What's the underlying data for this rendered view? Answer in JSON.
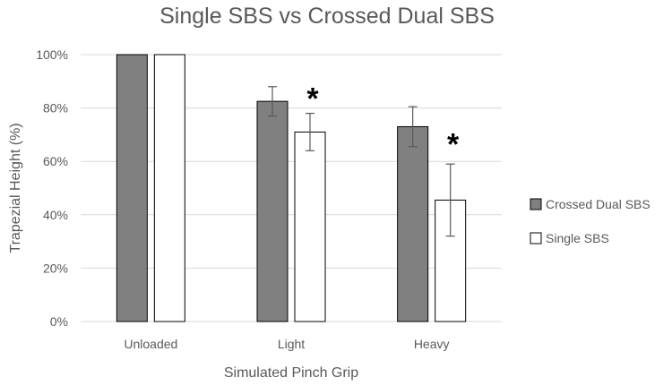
{
  "chart_data": {
    "type": "bar",
    "title": "Single SBS vs Crossed Dual SBS",
    "xlabel": "Simulated Pinch Grip",
    "ylabel": "Trapezial Height (%)",
    "ylim": [
      0,
      100
    ],
    "yticks": [
      0,
      20,
      40,
      60,
      80,
      100
    ],
    "ytick_labels": [
      "0%",
      "20%",
      "40%",
      "60%",
      "80%",
      "100%"
    ],
    "categories": [
      "Unloaded",
      "Light",
      "Heavy"
    ],
    "series": [
      {
        "name": "Crossed Dual SBS",
        "color": "#808080",
        "values": [
          100,
          82.5,
          73
        ],
        "errors": [
          0,
          5.5,
          7.5
        ]
      },
      {
        "name": "Single SBS",
        "color": "#ffffff",
        "values": [
          100,
          71,
          45.5
        ],
        "errors": [
          0,
          7,
          13.5
        ]
      }
    ],
    "annotations": [
      {
        "text": "*",
        "category": "Light",
        "y": 87
      },
      {
        "text": "*",
        "category": "Heavy",
        "y": 70
      }
    ],
    "grid": true,
    "legend_position": "right"
  }
}
